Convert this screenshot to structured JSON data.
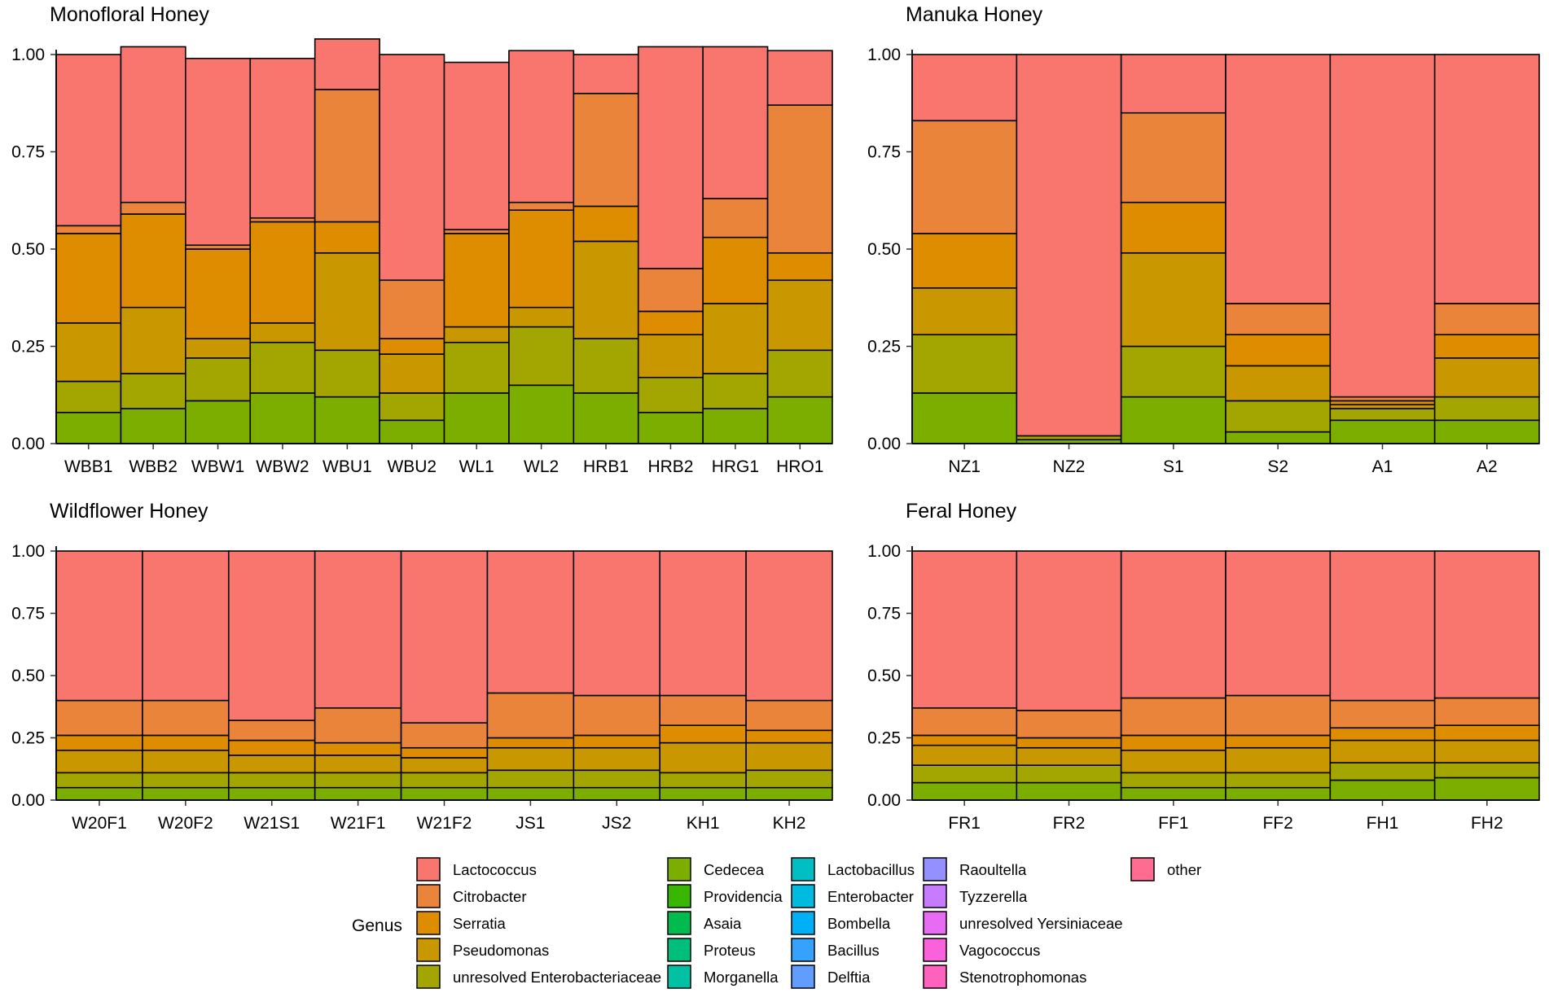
{
  "figure_kind": "stacked bar charts (relative abundance by genus)",
  "chart_data": [
    {
      "type": "bar",
      "stacked": true,
      "title": "Monofloral Honey",
      "xlabel": "",
      "ylabel": "",
      "ylim": [
        0,
        1
      ],
      "yticks": [
        "0.00",
        "0.25",
        "0.50",
        "0.75",
        "1.00"
      ],
      "categories": [
        "WBB1",
        "WBB2",
        "WBW1",
        "WBW2",
        "WBU1",
        "WBU2",
        "WL1",
        "WL2",
        "HRB1",
        "HRB2",
        "HRG1",
        "HRO1"
      ],
      "series": [
        {
          "name": "Cedecea",
          "values": [
            0.08,
            0.09,
            0.11,
            0.13,
            0.12,
            0.06,
            0.13,
            0.15,
            0.13,
            0.08,
            0.09,
            0.12
          ]
        },
        {
          "name": "unresolved Enterobacteriaceae",
          "values": [
            0.08,
            0.09,
            0.11,
            0.13,
            0.12,
            0.07,
            0.13,
            0.15,
            0.14,
            0.09,
            0.09,
            0.12
          ]
        },
        {
          "name": "Pseudomonas",
          "values": [
            0.15,
            0.17,
            0.05,
            0.05,
            0.25,
            0.1,
            0.04,
            0.05,
            0.25,
            0.11,
            0.18,
            0.18
          ]
        },
        {
          "name": "Serratia",
          "values": [
            0.23,
            0.24,
            0.23,
            0.26,
            0.08,
            0.04,
            0.24,
            0.25,
            0.09,
            0.06,
            0.17,
            0.07
          ]
        },
        {
          "name": "Citrobacter",
          "values": [
            0.02,
            0.03,
            0.01,
            0.01,
            0.34,
            0.15,
            0.01,
            0.02,
            0.29,
            0.11,
            0.1,
            0.38
          ]
        },
        {
          "name": "Lactococcus",
          "values": [
            0.44,
            0.4,
            0.48,
            0.41,
            0.13,
            0.58,
            0.43,
            0.39,
            0.1,
            0.57,
            0.39,
            0.14
          ]
        }
      ]
    },
    {
      "type": "bar",
      "stacked": true,
      "title": "Manuka Honey",
      "xlabel": "",
      "ylabel": "",
      "ylim": [
        0,
        1
      ],
      "yticks": [
        "0.00",
        "0.25",
        "0.50",
        "0.75",
        "1.00"
      ],
      "categories": [
        "NZ1",
        "NZ2",
        "S1",
        "S2",
        "A1",
        "A2"
      ],
      "series": [
        {
          "name": "Cedecea",
          "values": [
            0.13,
            0.01,
            0.12,
            0.03,
            0.06,
            0.06
          ]
        },
        {
          "name": "unresolved Enterobacteriaceae",
          "values": [
            0.15,
            0.01,
            0.13,
            0.08,
            0.03,
            0.06
          ]
        },
        {
          "name": "Pseudomonas",
          "values": [
            0.12,
            0.0,
            0.24,
            0.09,
            0.01,
            0.1
          ]
        },
        {
          "name": "Serratia",
          "values": [
            0.14,
            0.0,
            0.13,
            0.08,
            0.01,
            0.06
          ]
        },
        {
          "name": "Citrobacter",
          "values": [
            0.29,
            0.0,
            0.23,
            0.08,
            0.01,
            0.08
          ]
        },
        {
          "name": "Lactococcus",
          "values": [
            0.17,
            0.98,
            0.15,
            0.64,
            0.88,
            0.64
          ]
        }
      ]
    },
    {
      "type": "bar",
      "stacked": true,
      "title": "Wildflower Honey",
      "xlabel": "",
      "ylabel": "",
      "ylim": [
        0,
        1
      ],
      "yticks": [
        "0.00",
        "0.25",
        "0.50",
        "0.75",
        "1.00"
      ],
      "categories": [
        "W20F1",
        "W20F2",
        "W21S1",
        "W21F1",
        "W21F2",
        "JS1",
        "JS2",
        "KH1",
        "KH2"
      ],
      "series": [
        {
          "name": "Cedecea",
          "values": [
            0.05,
            0.05,
            0.05,
            0.05,
            0.05,
            0.05,
            0.05,
            0.05,
            0.05
          ]
        },
        {
          "name": "unresolved Enterobacteriaceae",
          "values": [
            0.06,
            0.06,
            0.06,
            0.06,
            0.06,
            0.07,
            0.07,
            0.06,
            0.07
          ]
        },
        {
          "name": "Pseudomonas",
          "values": [
            0.09,
            0.09,
            0.07,
            0.07,
            0.06,
            0.09,
            0.09,
            0.12,
            0.11
          ]
        },
        {
          "name": "Serratia",
          "values": [
            0.06,
            0.06,
            0.06,
            0.05,
            0.04,
            0.04,
            0.05,
            0.07,
            0.05
          ]
        },
        {
          "name": "Citrobacter",
          "values": [
            0.14,
            0.14,
            0.08,
            0.14,
            0.1,
            0.18,
            0.16,
            0.12,
            0.12
          ]
        },
        {
          "name": "Lactococcus",
          "values": [
            0.6,
            0.6,
            0.68,
            0.63,
            0.69,
            0.57,
            0.58,
            0.58,
            0.6
          ]
        }
      ]
    },
    {
      "type": "bar",
      "stacked": true,
      "title": "Feral Honey",
      "xlabel": "",
      "ylabel": "",
      "ylim": [
        0,
        1
      ],
      "yticks": [
        "0.00",
        "0.25",
        "0.50",
        "0.75",
        "1.00"
      ],
      "categories": [
        "FR1",
        "FR2",
        "FF1",
        "FF2",
        "FH1",
        "FH2"
      ],
      "series": [
        {
          "name": "Cedecea",
          "values": [
            0.07,
            0.07,
            0.05,
            0.05,
            0.08,
            0.09
          ]
        },
        {
          "name": "unresolved Enterobacteriaceae",
          "values": [
            0.07,
            0.07,
            0.06,
            0.06,
            0.07,
            0.06
          ]
        },
        {
          "name": "Pseudomonas",
          "values": [
            0.08,
            0.07,
            0.09,
            0.1,
            0.09,
            0.09
          ]
        },
        {
          "name": "Serratia",
          "values": [
            0.04,
            0.04,
            0.06,
            0.05,
            0.05,
            0.06
          ]
        },
        {
          "name": "Citrobacter",
          "values": [
            0.11,
            0.11,
            0.15,
            0.16,
            0.11,
            0.11
          ]
        },
        {
          "name": "Lactococcus",
          "values": [
            0.63,
            0.64,
            0.59,
            0.58,
            0.6,
            0.59
          ]
        }
      ]
    }
  ],
  "legend": {
    "title": "Genus",
    "placement": "bottom",
    "items": [
      {
        "name": "Lactococcus",
        "color": "#F8766D"
      },
      {
        "name": "Citrobacter",
        "color": "#E9843A"
      },
      {
        "name": "Serratia",
        "color": "#DE8C00"
      },
      {
        "name": "Pseudomonas",
        "color": "#C99800"
      },
      {
        "name": "unresolved Enterobacteriaceae",
        "color": "#A3A500"
      },
      {
        "name": "Cedecea",
        "color": "#7CAE00"
      },
      {
        "name": "Providencia",
        "color": "#39B600"
      },
      {
        "name": "Asaia",
        "color": "#00BB4E"
      },
      {
        "name": "Proteus",
        "color": "#00BF7D"
      },
      {
        "name": "Morganella",
        "color": "#00C1A3"
      },
      {
        "name": "Lactobacillus",
        "color": "#00BFC4"
      },
      {
        "name": "Enterobacter",
        "color": "#00BAE0"
      },
      {
        "name": "Bombella",
        "color": "#00B0F6"
      },
      {
        "name": "Bacillus",
        "color": "#35A2FF"
      },
      {
        "name": "Delftia",
        "color": "#619CFF"
      },
      {
        "name": "Raoultella",
        "color": "#9590FF"
      },
      {
        "name": "Tyzzerella",
        "color": "#C77CFF"
      },
      {
        "name": "unresolved Yersiniaceae",
        "color": "#E76BF3"
      },
      {
        "name": "Vagococcus",
        "color": "#FA62DB"
      },
      {
        "name": "Stenotrophomonas",
        "color": "#FF62BC"
      },
      {
        "name": "other",
        "color": "#FF6C91"
      }
    ]
  }
}
